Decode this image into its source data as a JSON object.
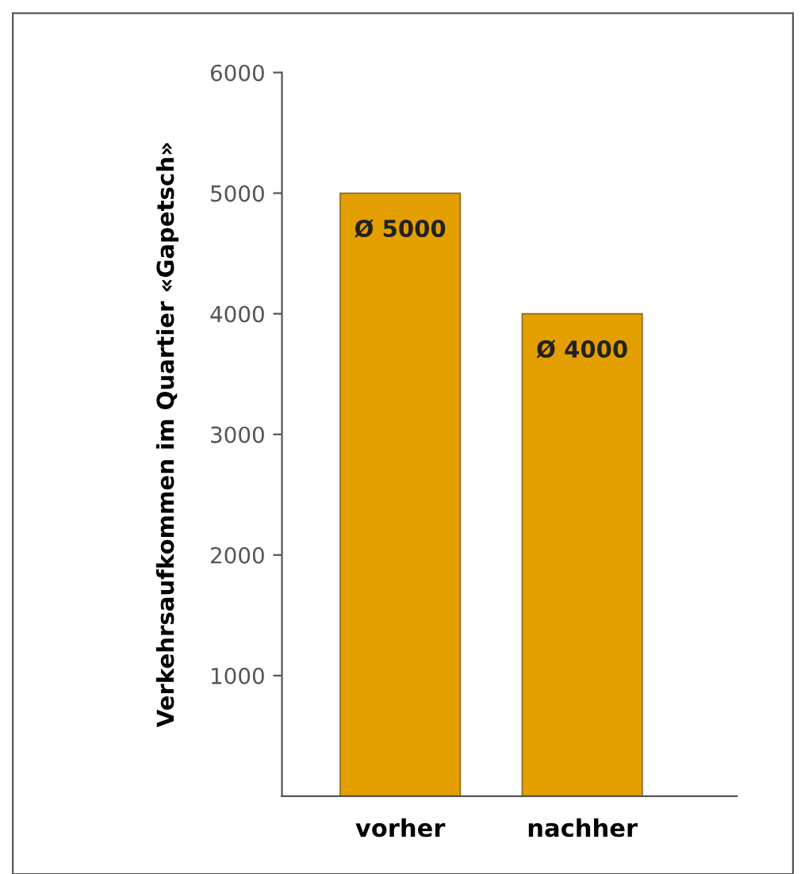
{
  "chart_data": {
    "type": "bar",
    "ylabel": "Verkehrsaufkommen im Quartier «Gapetsch»",
    "categories": [
      "vorher",
      "nachher"
    ],
    "values": [
      5000,
      4000
    ],
    "color": "#e39f00",
    "value_labels": [
      "Ø 5000",
      "Ø 4000"
    ],
    "ylim": [
      0,
      6000
    ],
    "yticks": [
      1000,
      2000,
      3000,
      4000,
      5000,
      6000
    ],
    "grid": false,
    "legend": false
  }
}
